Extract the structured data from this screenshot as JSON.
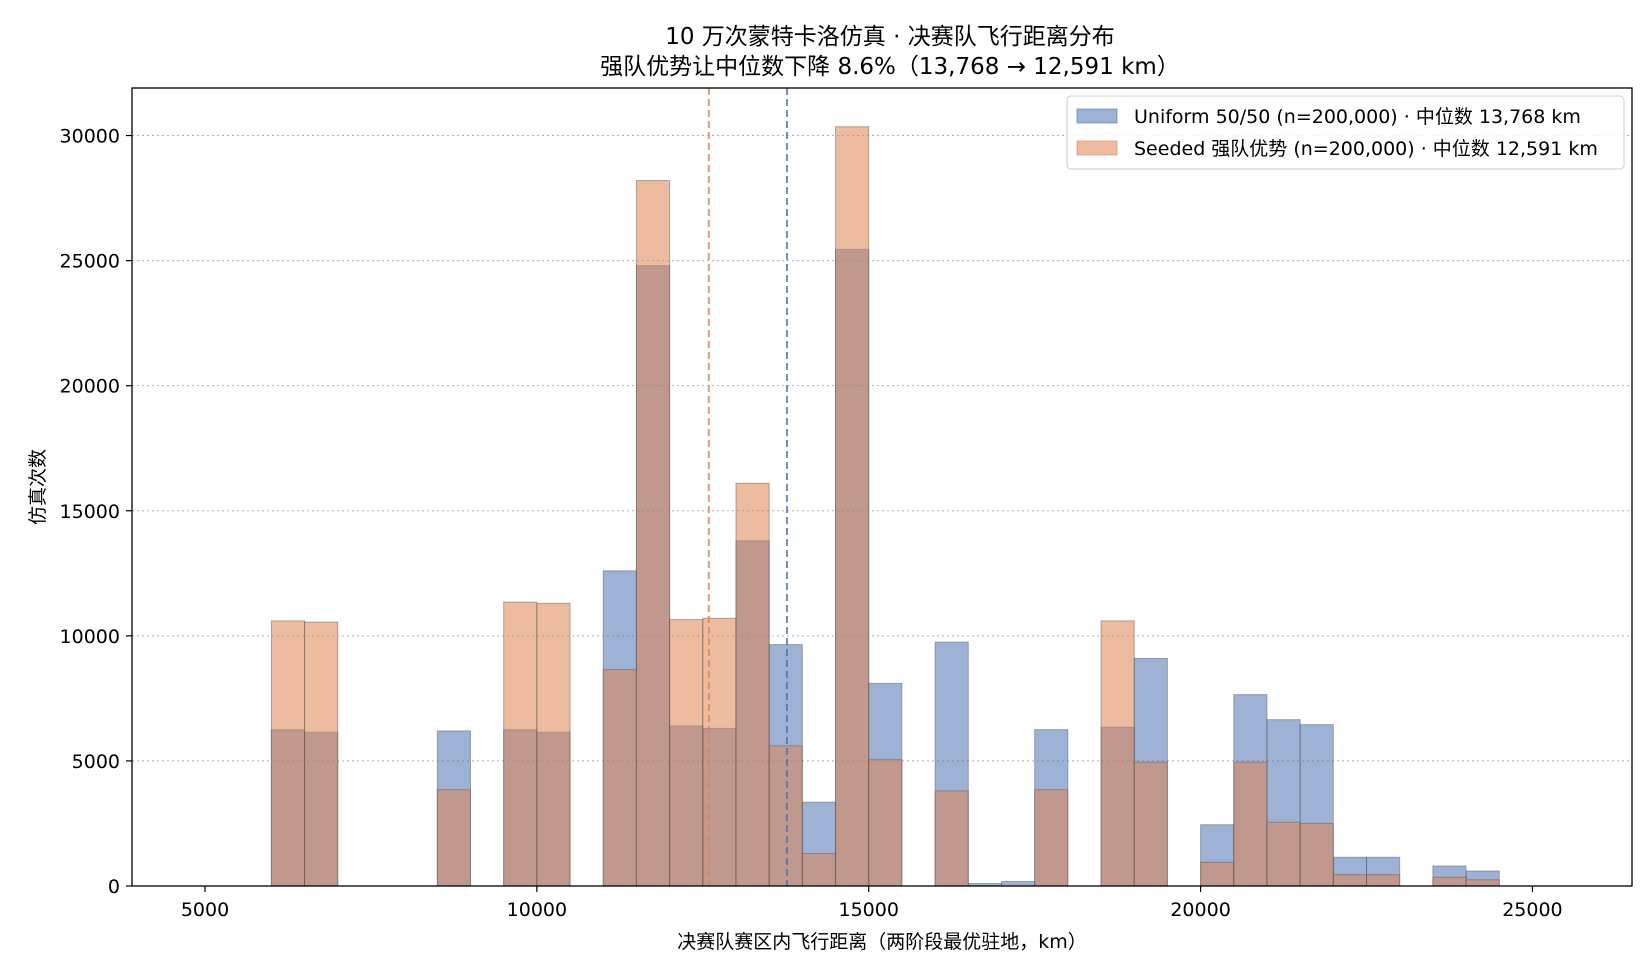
{
  "chart_data": {
    "type": "bar",
    "title_line1": "10 万次蒙特卡洛仿真 · 决赛队飞行距离分布",
    "title_line2": "强队优势让中位数下降 8.6%（13,768 → 12,591 km）",
    "xlabel": "决赛队赛区内飞行距离（两阶段最优驻地，km）",
    "ylabel": "仿真次数",
    "xlim": [
      3900,
      26500
    ],
    "ylim": [
      0,
      31900
    ],
    "x_ticks": [
      5000,
      10000,
      15000,
      20000,
      25000
    ],
    "x_tick_labels": [
      "5000",
      "10000",
      "15000",
      "20000",
      "25000"
    ],
    "y_ticks": [
      0,
      5000,
      10000,
      15000,
      20000,
      25000,
      30000
    ],
    "y_tick_labels": [
      "0",
      "5000",
      "10000",
      "15000",
      "20000",
      "25000",
      "30000"
    ],
    "grid": "horizontal dotted",
    "legend_position": "top-right",
    "bin_width": 500,
    "bin_starts": [
      6000,
      6500,
      8500,
      9500,
      10000,
      11000,
      11500,
      12000,
      12500,
      13000,
      13500,
      14000,
      14500,
      15000,
      16000,
      16500,
      17000,
      17500,
      18500,
      19000,
      20000,
      20500,
      21000,
      21500,
      22000,
      22500,
      23500,
      24000
    ],
    "series": [
      {
        "name": "Uniform 50/50 (n=200,000) · 中位数 13,768 km",
        "color": "#4c72b0",
        "median": 13768,
        "values": [
          6250,
          6150,
          6200,
          6250,
          6150,
          12600,
          24800,
          6400,
          6300,
          13800,
          9650,
          3350,
          25450,
          8100,
          9750,
          100,
          180,
          6250,
          6350,
          9100,
          2450,
          7650,
          6650,
          6450,
          1150,
          1150,
          800,
          600
        ]
      },
      {
        "name": "Seeded 强队优势 (n=200,000) · 中位数 12,591 km",
        "color": "#dd8452",
        "median": 12591,
        "values": [
          10600,
          10550,
          3850,
          11350,
          11300,
          8650,
          28200,
          10650,
          10700,
          16100,
          5600,
          1300,
          30350,
          5050,
          3800,
          0,
          0,
          3850,
          10600,
          4950,
          950,
          4950,
          2550,
          2500,
          450,
          450,
          350,
          250
        ]
      }
    ]
  }
}
